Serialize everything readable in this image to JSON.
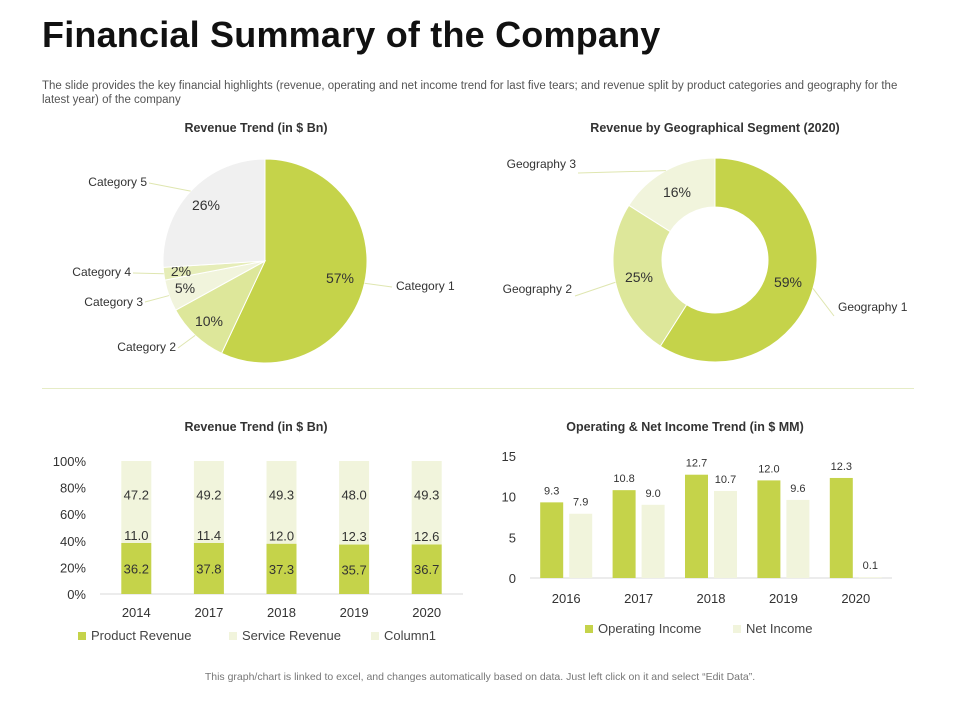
{
  "header": {
    "title": "Financial Summary of the Company",
    "subtitle": "The slide provides the key financial highlights (revenue, operating and net income trend for last five tears; and revenue split by product categories and geography for the latest year) of the company"
  },
  "footer": "This graph/chart is linked to excel, and changes automatically based on data. Just left click on it and select “Edit Data”.",
  "colors": {
    "green": "#c5d34a",
    "light_green": "#dde79a",
    "pale_green": "#f1f4dc",
    "lighter_green": "#e6edb8",
    "grey": "#f0f0f0"
  },
  "chart_data": [
    {
      "type": "pie",
      "title": "Revenue Trend (in $ Bn)",
      "categories": [
        "Category 1",
        "Category 2",
        "Category 3",
        "Category 4",
        "Category 5"
      ],
      "values": [
        57,
        10,
        5,
        2,
        26
      ],
      "labels": [
        "57%",
        "10%",
        "5%",
        "2%",
        "26%"
      ]
    },
    {
      "type": "pie",
      "subtype": "donut",
      "title": "Revenue by Geographical Segment (2020)",
      "categories": [
        "Geography 1",
        "Geography 2",
        "Geography 3"
      ],
      "values": [
        59,
        25,
        16
      ],
      "labels": [
        "59%",
        "25%",
        "16%"
      ]
    },
    {
      "type": "bar",
      "subtype": "stacked-100",
      "title": "Revenue Trend (in $ Bn)",
      "categories": [
        "2014",
        "2017",
        "2018",
        "2019",
        "2020"
      ],
      "series": [
        {
          "name": "Product Revenue",
          "values": [
            36.2,
            37.8,
            37.3,
            35.7,
            36.7
          ]
        },
        {
          "name": "Service Revenue",
          "values": [
            11.0,
            11.4,
            12.0,
            12.3,
            12.6
          ]
        },
        {
          "name": "Column1",
          "values": [
            47.2,
            49.2,
            49.3,
            48.0,
            49.3
          ]
        }
      ],
      "value_labels": [
        [
          "36.2",
          "37.8",
          "37.3",
          "35.7",
          "36.7"
        ],
        [
          "11.0",
          "11.4",
          "12.0",
          "12.3",
          "12.6"
        ],
        [
          "47.2",
          "49.2",
          "49.3",
          "48.0",
          "49.3"
        ]
      ],
      "yticks": [
        "0%",
        "20%",
        "40%",
        "60%",
        "80%",
        "100%"
      ],
      "ylim": [
        0,
        100
      ]
    },
    {
      "type": "bar",
      "title": "Operating & Net Income Trend (in $ MM)",
      "categories": [
        "2016",
        "2017",
        "2018",
        "2019",
        "2020"
      ],
      "series": [
        {
          "name": "Operating Income",
          "values": [
            9.3,
            10.8,
            12.7,
            12.0,
            12.3
          ]
        },
        {
          "name": "Net Income",
          "values": [
            7.9,
            9.0,
            10.7,
            9.6,
            0.1
          ]
        }
      ],
      "value_labels": [
        [
          "9.3",
          "10.8",
          "12.7",
          "12.0",
          "12.3"
        ],
        [
          "7.9",
          "9.0",
          "10.7",
          "9.6",
          "0.1"
        ]
      ],
      "yticks": [
        "0",
        "5",
        "10",
        "15"
      ],
      "ylim": [
        0,
        15
      ]
    }
  ]
}
